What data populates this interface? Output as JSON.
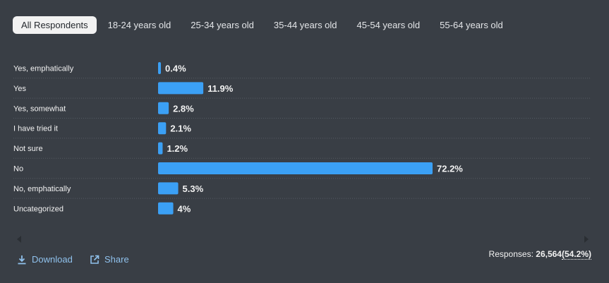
{
  "tabs": [
    {
      "label": "All Respondents",
      "active": true
    },
    {
      "label": "18-24 years old",
      "active": false
    },
    {
      "label": "25-34 years old",
      "active": false
    },
    {
      "label": "35-44 years old",
      "active": false
    },
    {
      "label": "45-54 years old",
      "active": false
    },
    {
      "label": "55-64 years old",
      "active": false
    }
  ],
  "chart_data": {
    "type": "bar",
    "orientation": "horizontal",
    "categories": [
      "Yes, emphatically",
      "Yes",
      "Yes, somewhat",
      "I have tried it",
      "Not sure",
      "No",
      "No, emphatically",
      "Uncategorized"
    ],
    "values": [
      0.4,
      11.9,
      2.8,
      2.1,
      1.2,
      72.2,
      5.3,
      4
    ],
    "value_labels": [
      "0.4%",
      "11.9%",
      "2.8%",
      "2.1%",
      "1.2%",
      "72.2%",
      "5.3%",
      "4%"
    ],
    "unit": "%",
    "xlim": [
      0,
      72.2
    ],
    "bar_color": "#3ba0f5",
    "grid": false
  },
  "footer": {
    "download_label": "Download",
    "share_label": "Share",
    "responses_label": "Responses:",
    "responses_count": "26,564",
    "responses_pct": "(54.2%)"
  },
  "colors": {
    "background": "#393e45",
    "bar": "#3ba0f5",
    "link": "#8fc1ec",
    "active_tab_bg": "#f2f2f2"
  }
}
